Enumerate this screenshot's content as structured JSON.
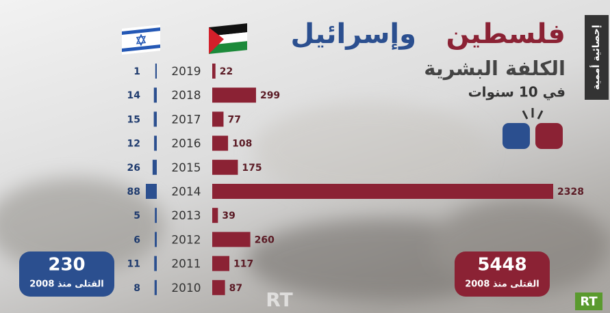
{
  "chart_data": {
    "type": "diverging-bar",
    "title_parts": [
      "فلسطين",
      "وإسرائيل"
    ],
    "subtitle": "الكلفة البشرية",
    "period": "في 10 سنوات",
    "side_label": "إحصائية أممية",
    "categories": [
      "2019",
      "2018",
      "2017",
      "2016",
      "2015",
      "2014",
      "2013",
      "2012",
      "2011",
      "2010"
    ],
    "series": [
      {
        "color": "#8b2234",
        "values": [
          22,
          299,
          77,
          108,
          175,
          2328,
          39,
          260,
          117,
          87
        ]
      },
      {
        "color": "#2b4f8f",
        "values": [
          1,
          14,
          15,
          12,
          26,
          88,
          5,
          6,
          11,
          8
        ]
      }
    ],
    "totals": [
      {
        "value": 5448,
        "label": "القتلى منذ 2008",
        "color": "#8b2234"
      },
      {
        "value": 230,
        "label": "القتلى منذ 2008",
        "color": "#2b4f8f"
      }
    ],
    "watermark": "RT"
  }
}
